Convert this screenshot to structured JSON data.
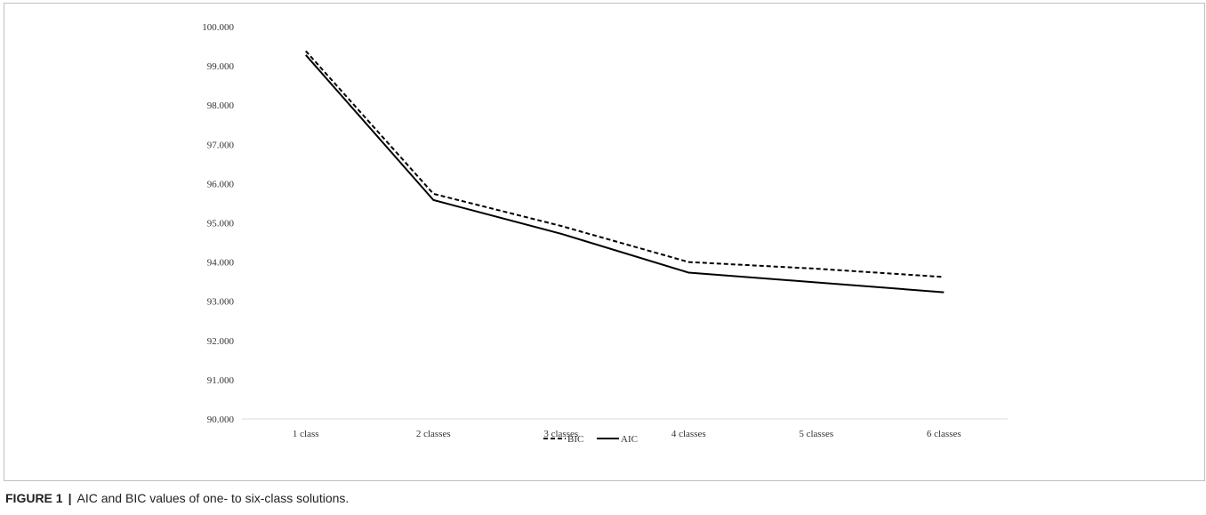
{
  "chart_data": {
    "type": "line",
    "categories": [
      "1 class",
      "2 classes",
      "3 classes",
      "4 classes",
      "5 classes",
      "6 classes"
    ],
    "y_tick_labels": [
      "90.000",
      "91.000",
      "92.000",
      "93.000",
      "94.000",
      "95.000",
      "96.000",
      "97.000",
      "98.000",
      "99.000",
      "100.000"
    ],
    "ylim": [
      90,
      100
    ],
    "grid": false,
    "legend_position": "bottom",
    "series": [
      {
        "name": "BIC",
        "values": [
          99.38,
          95.74,
          94.92,
          94.0,
          93.83,
          93.62
        ],
        "style": "dashed",
        "color": "#000000"
      },
      {
        "name": "AIC",
        "values": [
          99.28,
          95.58,
          94.72,
          93.73,
          93.48,
          93.23
        ],
        "style": "solid",
        "color": "#000000"
      }
    ]
  },
  "caption": {
    "label": "FIGURE 1",
    "separator": "|",
    "text": "AIC and BIC values of one- to six-class solutions."
  }
}
